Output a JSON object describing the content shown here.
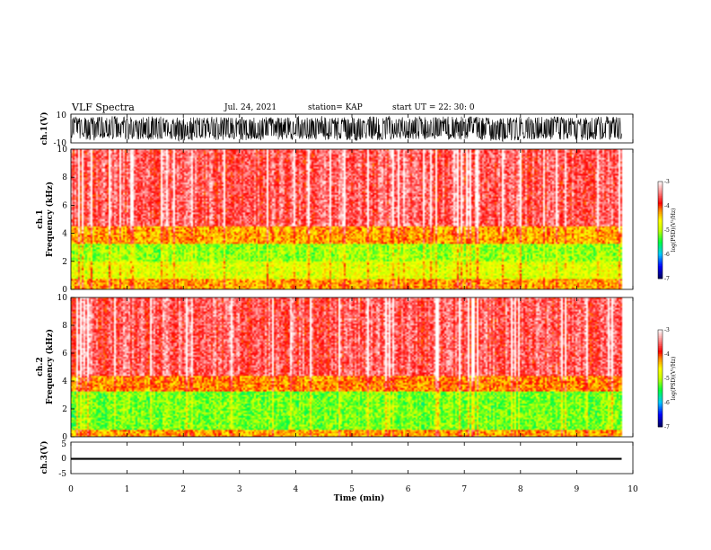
{
  "header": {
    "title": "VLF Spectra",
    "date": "Jul. 24, 2021",
    "station": "station= KAP",
    "start": "start  UT =   22: 30: 0"
  },
  "chart_data": [
    {
      "type": "line",
      "panel": "ch1-waveform",
      "ylabel": "ch.1(V)",
      "ylim": [
        -10,
        10
      ],
      "yticks": [
        "10",
        "-10"
      ],
      "xlim": [
        0,
        10
      ],
      "data_xrange": [
        0,
        9.8
      ],
      "envelope_approx": {
        "low": -9,
        "high": 9
      },
      "color": "#000000"
    },
    {
      "type": "heatmap",
      "panel": "ch1-spectrogram",
      "ylabel": "ch.1\nFrequency (kHz)",
      "ylim": [
        0,
        10
      ],
      "yticks": [
        "0",
        "2",
        "4",
        "6",
        "8",
        "10"
      ],
      "xlim": [
        0,
        10
      ],
      "data_xrange": [
        0,
        9.8
      ],
      "bands_approx_logPSD": [
        {
          "f_khz": [
            0,
            0.7
          ],
          "level": -4.3
        },
        {
          "f_khz": [
            0.7,
            2.0
          ],
          "level": -4.8
        },
        {
          "f_khz": [
            2.0,
            3.3
          ],
          "level": -5.1
        },
        {
          "f_khz": [
            3.3,
            4.5
          ],
          "level": -4.3
        },
        {
          "f_khz": [
            4.5,
            10
          ],
          "level": -3.6
        }
      ],
      "colorbar": {
        "label": "log(PSD)(V²/Hz)",
        "range": [
          -7,
          -3
        ],
        "ticks": [
          "-3",
          "-4",
          "-5",
          "-6",
          "-7"
        ]
      }
    },
    {
      "type": "heatmap",
      "panel": "ch2-spectrogram",
      "ylabel": "ch.2\nFrequency (kHz)",
      "ylim": [
        0,
        10
      ],
      "yticks": [
        "0",
        "2",
        "4",
        "6",
        "8",
        "10"
      ],
      "xlim": [
        0,
        10
      ],
      "data_xrange": [
        0,
        9.8
      ],
      "bands_approx_logPSD": [
        {
          "f_khz": [
            0,
            0.5
          ],
          "level": -4.3
        },
        {
          "f_khz": [
            0.5,
            3.3
          ],
          "level": -5.2
        },
        {
          "f_khz": [
            3.3,
            4.4
          ],
          "level": -4.2
        },
        {
          "f_khz": [
            4.4,
            10
          ],
          "level": -3.6
        }
      ],
      "colorbar": {
        "label": "log(PSD)(V²/Hz)",
        "range": [
          -7,
          -3
        ],
        "ticks": [
          "-3",
          "-4",
          "-5",
          "-6",
          "-7"
        ]
      }
    },
    {
      "type": "line",
      "panel": "ch3-waveform",
      "ylabel": "ch.3(V)",
      "ylim": [
        -5,
        5
      ],
      "yticks": [
        "5",
        "0",
        "-5"
      ],
      "xlim": [
        0,
        10
      ],
      "data_xrange": [
        0,
        9.8
      ],
      "level_approx": [
        -0.6,
        0.0
      ],
      "color": "#000000"
    }
  ],
  "xaxis": {
    "label": "Time (min)",
    "ticks": [
      "0",
      "1",
      "2",
      "3",
      "4",
      "5",
      "6",
      "7",
      "8",
      "9",
      "10"
    ]
  },
  "colors": {
    "colormap": [
      "#00005a",
      "#0000ff",
      "#00c8ff",
      "#00ff40",
      "#c8ff00",
      "#ffff00",
      "#ff8c00",
      "#ff0000",
      "#ff9696",
      "#ffffff"
    ]
  }
}
